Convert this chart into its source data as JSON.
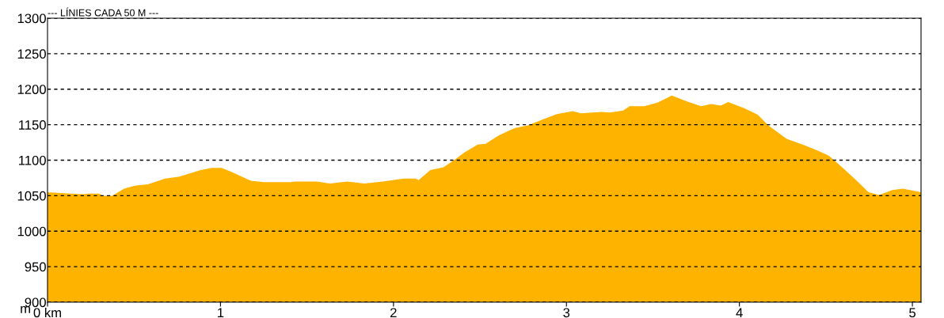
{
  "chart_data": {
    "type": "area",
    "title": "--- LÍNIES CADA 50 M ---",
    "ylabel": "m",
    "xlim": [
      0,
      5.05
    ],
    "ylim": [
      900,
      1300
    ],
    "xticks": [
      {
        "value": 0,
        "label": "0 km"
      },
      1,
      2,
      3,
      4,
      5
    ],
    "yticks": [
      900,
      950,
      1000,
      1050,
      1100,
      1150,
      1200,
      1250,
      1300
    ],
    "grid": "y",
    "series": [
      {
        "color": "#fdb300",
        "x": [
          0,
          0.137,
          0.206,
          0.237,
          0.298,
          0.32,
          0.374,
          0.443,
          0.504,
          0.58,
          0.68,
          0.763,
          0.885,
          0.946,
          1.007,
          1.068,
          1.175,
          1.251,
          1.404,
          1.434,
          1.557,
          1.633,
          1.732,
          1.832,
          1.938,
          2.06,
          2.129,
          2.145,
          2.213,
          2.289,
          2.35,
          2.41,
          2.487,
          2.533,
          2.61,
          2.7,
          2.777,
          2.869,
          2.945,
          3.037,
          3.083,
          3.205,
          3.251,
          3.328,
          3.365,
          3.45,
          3.526,
          3.61,
          3.694,
          3.778,
          3.838,
          3.892,
          3.935,
          4.03,
          4.106,
          4.167,
          4.273,
          4.365,
          4.457,
          4.518,
          4.594,
          4.67,
          4.747,
          4.808,
          4.884,
          4.945,
          5.05
        ],
        "values": [
          1055,
          1053,
          1052,
          1053,
          1053,
          1050,
          1050,
          1060,
          1064,
          1066,
          1074,
          1077,
          1086,
          1089,
          1089,
          1083,
          1071,
          1069,
          1069,
          1070,
          1070,
          1067,
          1070,
          1067,
          1070,
          1074,
          1074,
          1072,
          1086,
          1090,
          1100,
          1111,
          1122,
          1123,
          1135,
          1145,
          1149,
          1158,
          1165,
          1169,
          1166,
          1168,
          1167,
          1170,
          1176,
          1176,
          1181,
          1191,
          1183,
          1176,
          1179,
          1177,
          1182,
          1173,
          1164,
          1149,
          1130,
          1122,
          1113,
          1106,
          1090,
          1073,
          1055,
          1051,
          1058,
          1060,
          1055
        ]
      }
    ]
  }
}
